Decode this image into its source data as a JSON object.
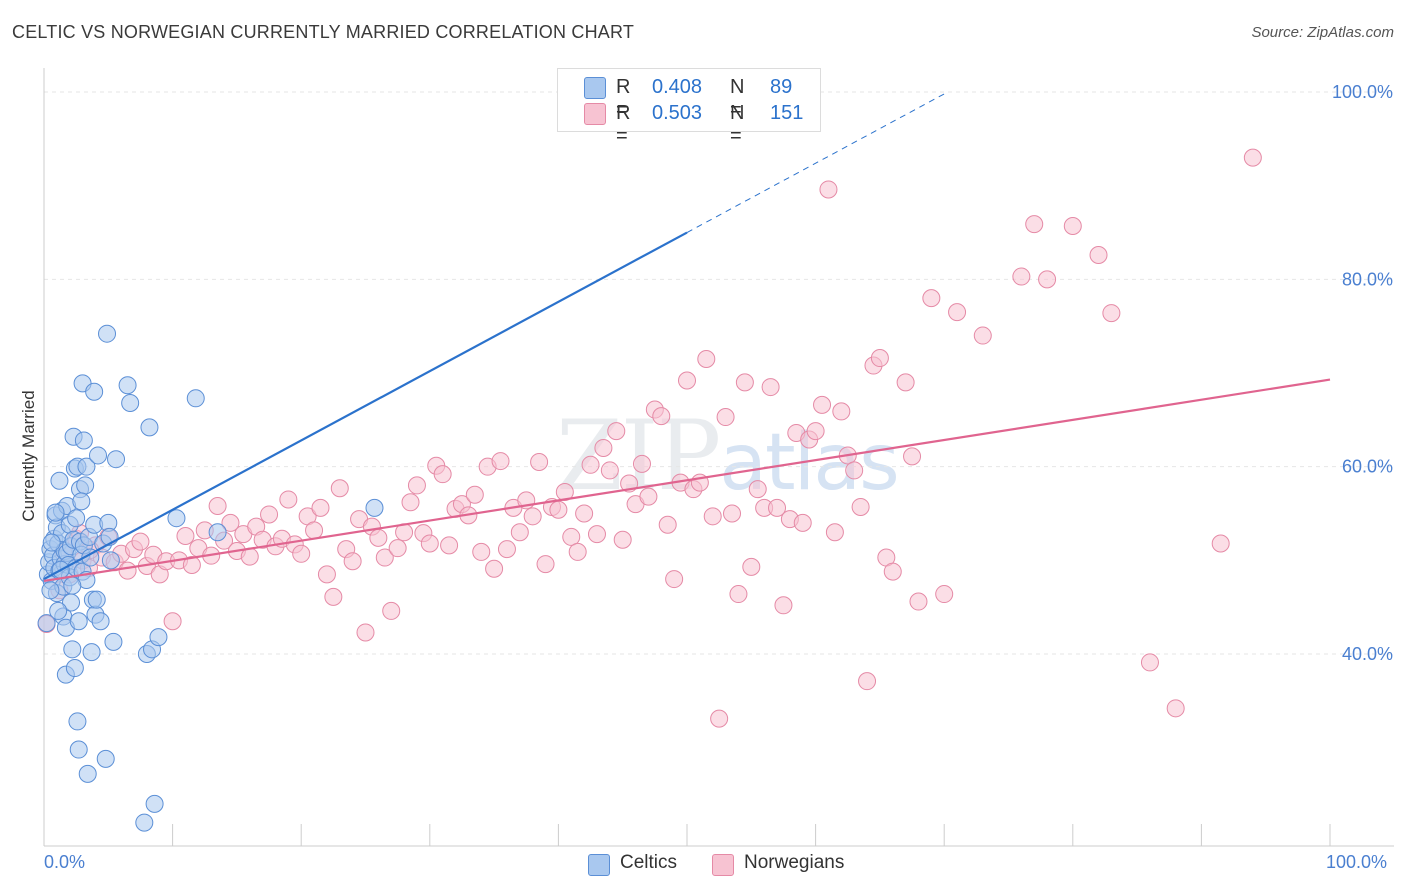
{
  "title": "CELTIC VS NORWEGIAN CURRENTLY MARRIED CORRELATION CHART",
  "source": "Source: ZipAtlas.com",
  "watermark": {
    "zip": "ZIP",
    "atlas": "atlas"
  },
  "colors": {
    "celtics_fill": "#a9c8ef",
    "celtics_stroke": "#5b8fd6",
    "celtics_line": "#2b72cc",
    "norwegians_fill": "#f7c3d2",
    "norwegians_stroke": "#e58aa6",
    "norwegians_line": "#e0648f",
    "tick_label": "#4a7fd0",
    "grid": "#e6e6e6",
    "axis": "#cccccc"
  },
  "legend": {
    "rows": [
      {
        "r_label": "R =",
        "r_value": "0.408",
        "n_label": "N =",
        "n_value": "89"
      },
      {
        "r_label": "R =",
        "r_value": "0.503",
        "n_label": "N =",
        "n_value": "151"
      }
    ]
  },
  "chart_data": {
    "type": "scatter",
    "title": "CELTIC VS NORWEGIAN CURRENTLY MARRIED CORRELATION CHART",
    "xlabel": "",
    "ylabel": "Currently Married",
    "xlim": [
      0,
      100
    ],
    "ylim": [
      19.5,
      101.5
    ],
    "x_tick_labels": [
      "0.0%",
      "100.0%"
    ],
    "y_ticks": [
      40,
      60,
      80,
      100
    ],
    "y_tick_labels": [
      "40.0%",
      "60.0%",
      "80.0%",
      "100.0%"
    ],
    "grid": true,
    "legend_position": "top-center",
    "series": [
      {
        "name": "Celtics",
        "n": 89,
        "r": 0.408,
        "trend": {
          "x0": 0,
          "y0": 48.0,
          "x1": 50,
          "y1": 85.0,
          "dashed_to_x": 70,
          "dashed_to_y": 99.8
        },
        "points": [
          [
            0.3,
            48.5
          ],
          [
            0.4,
            49.8
          ],
          [
            0.5,
            51.2
          ],
          [
            0.6,
            47.8
          ],
          [
            0.7,
            50.5
          ],
          [
            0.8,
            52.3
          ],
          [
            0.8,
            49.2
          ],
          [
            0.9,
            54.8
          ],
          [
            1.0,
            46.5
          ],
          [
            1.0,
            53.5
          ],
          [
            1.1,
            51.8
          ],
          [
            1.2,
            48.9
          ],
          [
            1.2,
            58.5
          ],
          [
            1.3,
            50.2
          ],
          [
            1.4,
            55.3
          ],
          [
            1.4,
            52.9
          ],
          [
            1.5,
            47.2
          ],
          [
            1.5,
            44.0
          ],
          [
            1.6,
            49.6
          ],
          [
            1.6,
            51.0
          ],
          [
            1.7,
            42.8
          ],
          [
            1.7,
            37.8
          ],
          [
            1.8,
            55.8
          ],
          [
            1.8,
            50.8
          ],
          [
            1.9,
            49.5
          ],
          [
            2.0,
            48.2
          ],
          [
            2.0,
            53.8
          ],
          [
            2.1,
            45.5
          ],
          [
            2.1,
            51.5
          ],
          [
            2.2,
            40.5
          ],
          [
            2.3,
            52.2
          ],
          [
            2.3,
            63.2
          ],
          [
            2.4,
            59.8
          ],
          [
            2.4,
            38.5
          ],
          [
            2.5,
            49.2
          ],
          [
            2.5,
            54.5
          ],
          [
            2.6,
            32.8
          ],
          [
            2.6,
            60.0
          ],
          [
            2.7,
            29.8
          ],
          [
            2.7,
            43.5
          ],
          [
            2.8,
            57.6
          ],
          [
            2.8,
            52.0
          ],
          [
            2.9,
            50.6
          ],
          [
            3.0,
            68.9
          ],
          [
            3.0,
            48.8
          ],
          [
            3.1,
            62.8
          ],
          [
            3.1,
            51.6
          ],
          [
            3.2,
            58.0
          ],
          [
            3.3,
            47.9
          ],
          [
            3.3,
            60.0
          ],
          [
            3.4,
            27.2
          ],
          [
            3.5,
            52.5
          ],
          [
            3.6,
            50.3
          ],
          [
            3.7,
            40.2
          ],
          [
            3.8,
            45.8
          ],
          [
            3.9,
            68.0
          ],
          [
            3.9,
            53.8
          ],
          [
            4.0,
            44.2
          ],
          [
            4.1,
            45.8
          ],
          [
            4.2,
            61.2
          ],
          [
            4.4,
            43.5
          ],
          [
            4.6,
            51.8
          ],
          [
            4.8,
            28.8
          ],
          [
            4.9,
            74.2
          ],
          [
            5.0,
            54.0
          ],
          [
            5.1,
            52.5
          ],
          [
            5.2,
            50.0
          ],
          [
            5.4,
            41.3
          ],
          [
            5.6,
            60.8
          ],
          [
            6.5,
            68.7
          ],
          [
            6.7,
            66.8
          ],
          [
            7.8,
            22.0
          ],
          [
            8.0,
            40.0
          ],
          [
            8.2,
            64.2
          ],
          [
            8.4,
            40.5
          ],
          [
            8.6,
            24.0
          ],
          [
            8.9,
            41.8
          ],
          [
            10.3,
            54.5
          ],
          [
            11.8,
            67.3
          ],
          [
            13.5,
            53.0
          ],
          [
            25.7,
            55.6
          ],
          [
            0.5,
            46.8
          ],
          [
            1.1,
            44.6
          ],
          [
            0.9,
            55.1
          ],
          [
            2.2,
            47.3
          ],
          [
            1.3,
            49.0
          ],
          [
            0.6,
            51.9
          ],
          [
            2.9,
            56.3
          ],
          [
            0.2,
            43.3
          ]
        ]
      },
      {
        "name": "Norwegians",
        "n": 151,
        "r": 0.503,
        "trend": {
          "x0": 0,
          "y0": 47.8,
          "x1": 100,
          "y1": 69.3
        },
        "points": [
          [
            0.2,
            43.2
          ],
          [
            1.5,
            50.8
          ],
          [
            2.0,
            48.5
          ],
          [
            2.5,
            52.3
          ],
          [
            3.0,
            50.0
          ],
          [
            3.5,
            49.2
          ],
          [
            4.0,
            51.6
          ],
          [
            4.5,
            50.3
          ],
          [
            5.0,
            52.5
          ],
          [
            5.5,
            49.8
          ],
          [
            6.0,
            50.7
          ],
          [
            6.5,
            48.9
          ],
          [
            7.0,
            51.2
          ],
          [
            7.5,
            52.0
          ],
          [
            8.0,
            49.4
          ],
          [
            8.5,
            50.6
          ],
          [
            9.0,
            48.5
          ],
          [
            9.5,
            49.9
          ],
          [
            10.0,
            43.5
          ],
          [
            10.5,
            50.0
          ],
          [
            11.0,
            52.6
          ],
          [
            11.5,
            49.5
          ],
          [
            12.0,
            51.3
          ],
          [
            12.5,
            53.2
          ],
          [
            13.0,
            50.5
          ],
          [
            13.5,
            55.8
          ],
          [
            14.0,
            52.1
          ],
          [
            14.5,
            54.0
          ],
          [
            15.0,
            51.0
          ],
          [
            15.5,
            52.8
          ],
          [
            16.0,
            50.4
          ],
          [
            16.5,
            53.6
          ],
          [
            17.0,
            52.2
          ],
          [
            17.5,
            54.9
          ],
          [
            18.0,
            51.5
          ],
          [
            18.5,
            52.3
          ],
          [
            19.0,
            56.5
          ],
          [
            19.5,
            51.7
          ],
          [
            20.0,
            50.7
          ],
          [
            20.5,
            54.7
          ],
          [
            21.0,
            53.2
          ],
          [
            21.5,
            55.6
          ],
          [
            22.0,
            48.5
          ],
          [
            22.5,
            46.1
          ],
          [
            23.0,
            57.7
          ],
          [
            23.5,
            51.2
          ],
          [
            24.0,
            49.9
          ],
          [
            24.5,
            54.4
          ],
          [
            25.0,
            42.3
          ],
          [
            25.5,
            53.6
          ],
          [
            26.0,
            52.4
          ],
          [
            26.5,
            50.3
          ],
          [
            27.0,
            44.6
          ],
          [
            27.5,
            51.3
          ],
          [
            28.0,
            53.0
          ],
          [
            28.5,
            56.2
          ],
          [
            29.0,
            58.0
          ],
          [
            29.5,
            52.9
          ],
          [
            30.0,
            51.8
          ],
          [
            30.5,
            60.1
          ],
          [
            31.0,
            59.2
          ],
          [
            31.5,
            51.6
          ],
          [
            32.0,
            55.5
          ],
          [
            32.5,
            56.0
          ],
          [
            33.0,
            54.8
          ],
          [
            33.5,
            57.0
          ],
          [
            34.0,
            50.9
          ],
          [
            34.5,
            60.0
          ],
          [
            35.0,
            49.1
          ],
          [
            35.5,
            60.6
          ],
          [
            36.0,
            51.2
          ],
          [
            36.5,
            55.6
          ],
          [
            37.0,
            53.0
          ],
          [
            37.5,
            56.4
          ],
          [
            38.0,
            54.7
          ],
          [
            38.5,
            60.5
          ],
          [
            39.0,
            49.6
          ],
          [
            39.5,
            55.7
          ],
          [
            40.0,
            55.4
          ],
          [
            40.5,
            57.3
          ],
          [
            41.0,
            52.5
          ],
          [
            41.5,
            50.9
          ],
          [
            42.0,
            55.0
          ],
          [
            42.5,
            60.2
          ],
          [
            43.0,
            52.8
          ],
          [
            43.5,
            62.0
          ],
          [
            44.0,
            59.6
          ],
          [
            44.5,
            63.8
          ],
          [
            45.0,
            52.2
          ],
          [
            45.5,
            58.2
          ],
          [
            46.0,
            56.0
          ],
          [
            46.5,
            60.3
          ],
          [
            47.0,
            56.8
          ],
          [
            47.5,
            66.1
          ],
          [
            48.0,
            65.4
          ],
          [
            48.5,
            53.8
          ],
          [
            49.0,
            48.0
          ],
          [
            49.5,
            58.3
          ],
          [
            50.0,
            69.2
          ],
          [
            50.5,
            57.6
          ],
          [
            51.0,
            58.3
          ],
          [
            51.5,
            71.5
          ],
          [
            52.0,
            54.7
          ],
          [
            52.5,
            33.1
          ],
          [
            53.0,
            65.3
          ],
          [
            53.5,
            55.0
          ],
          [
            54.0,
            46.4
          ],
          [
            54.5,
            69.0
          ],
          [
            55.0,
            49.3
          ],
          [
            55.5,
            57.6
          ],
          [
            56.0,
            55.6
          ],
          [
            56.5,
            68.5
          ],
          [
            57.0,
            55.6
          ],
          [
            57.5,
            45.2
          ],
          [
            58.0,
            54.4
          ],
          [
            58.5,
            63.6
          ],
          [
            59.0,
            54.0
          ],
          [
            59.5,
            62.9
          ],
          [
            60.0,
            63.8
          ],
          [
            60.5,
            66.6
          ],
          [
            61.0,
            89.6
          ],
          [
            61.5,
            53.0
          ],
          [
            62.0,
            65.9
          ],
          [
            62.5,
            61.2
          ],
          [
            63.0,
            59.6
          ],
          [
            63.5,
            55.7
          ],
          [
            64.0,
            37.1
          ],
          [
            64.5,
            70.8
          ],
          [
            65.0,
            71.6
          ],
          [
            65.5,
            50.3
          ],
          [
            66.0,
            48.8
          ],
          [
            67.0,
            69.0
          ],
          [
            67.5,
            61.1
          ],
          [
            68.0,
            45.6
          ],
          [
            69.0,
            78.0
          ],
          [
            70.0,
            46.4
          ],
          [
            71.0,
            76.5
          ],
          [
            73.0,
            74.0
          ],
          [
            76.0,
            80.3
          ],
          [
            77.0,
            85.9
          ],
          [
            78.0,
            80.0
          ],
          [
            80.0,
            85.7
          ],
          [
            82.0,
            82.6
          ],
          [
            83.0,
            76.4
          ],
          [
            86.0,
            39.1
          ],
          [
            88.0,
            34.2
          ],
          [
            91.5,
            51.8
          ],
          [
            94.0,
            93.0
          ],
          [
            1.2,
            46.8
          ],
          [
            2.8,
            52.9
          ],
          [
            3.6,
            51.1
          ]
        ]
      }
    ]
  },
  "bottom_legend": {
    "celtics": "Celtics",
    "norwegians": "Norwegians"
  }
}
